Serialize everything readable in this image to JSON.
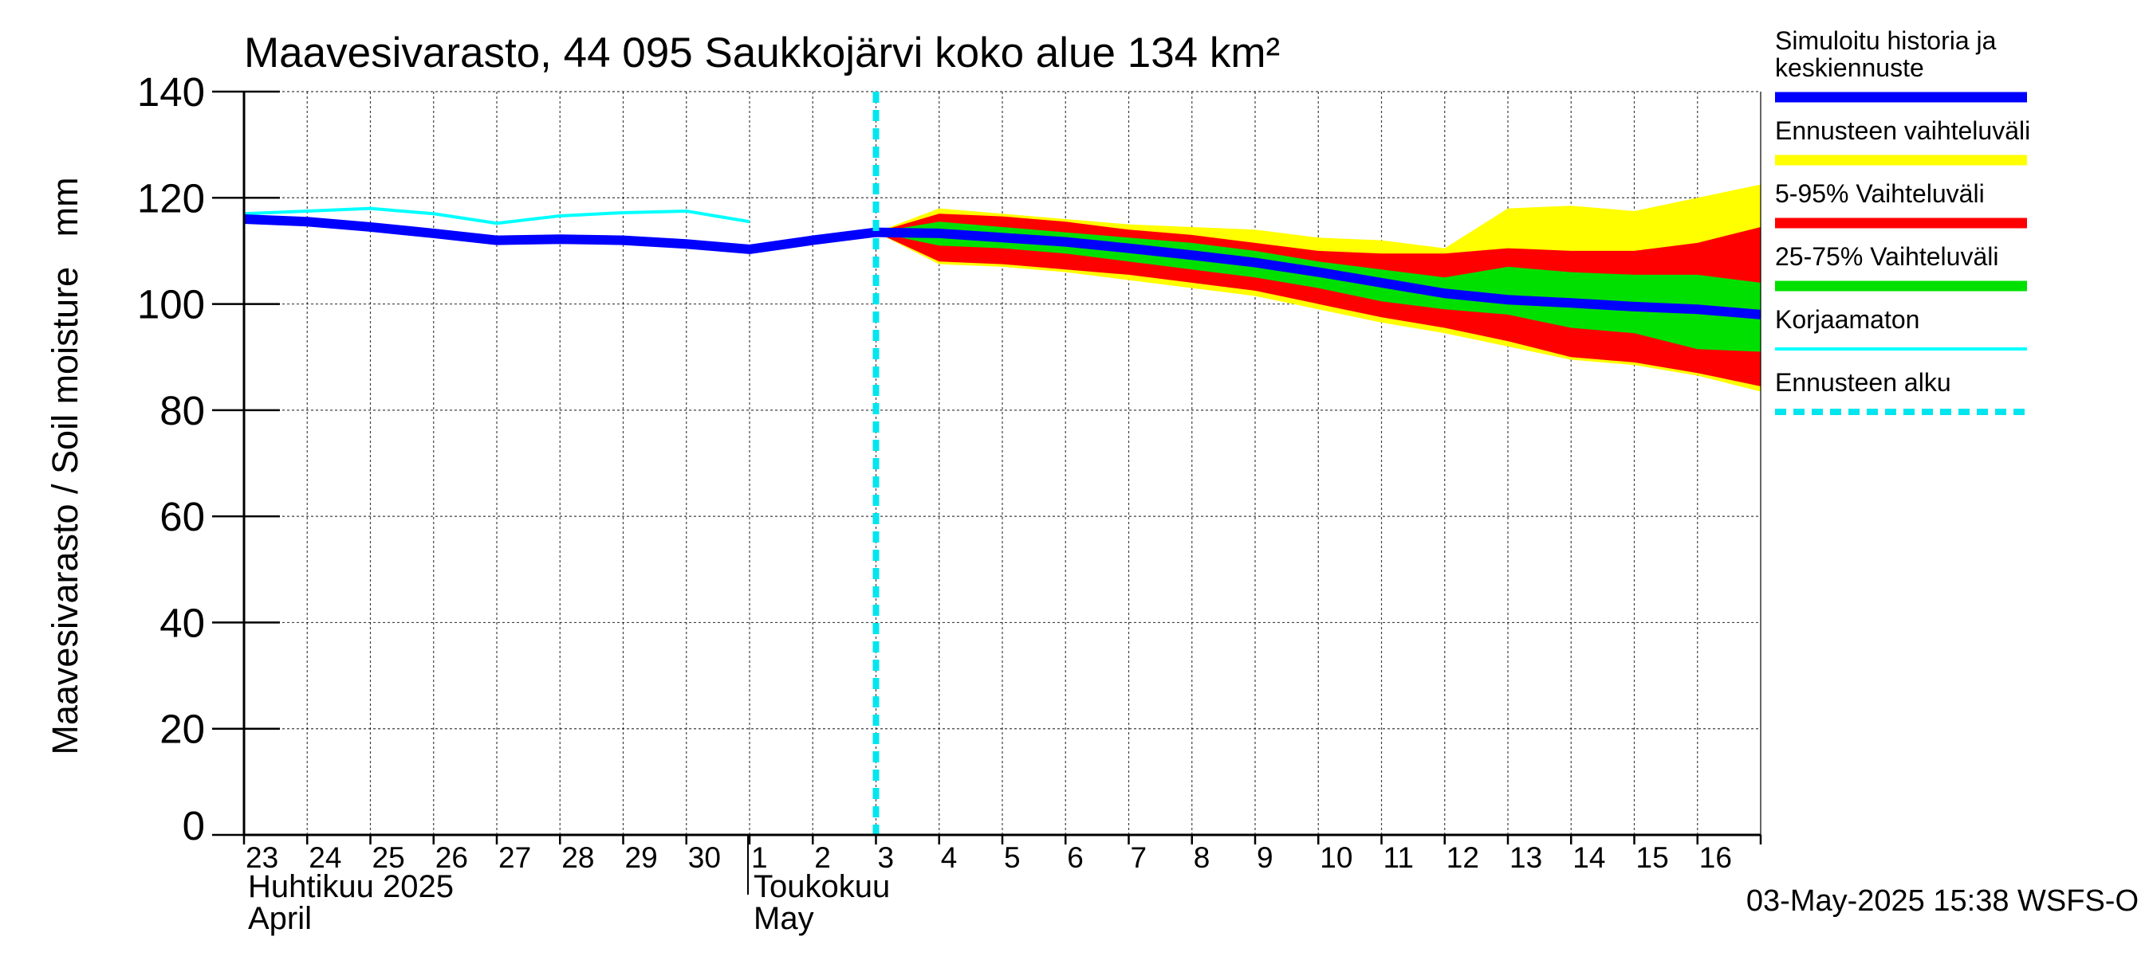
{
  "chart_data": {
    "type": "area",
    "title": "Maavesivarasto, 44 095 Saukkojärvi koko alue 134 km²",
    "ylabel": "Maavesivarasto / Soil moisture   mm",
    "ylim": [
      0,
      140
    ],
    "yticks": [
      0,
      20,
      40,
      60,
      80,
      100,
      120,
      140
    ],
    "x_day_range": [
      0,
      24
    ],
    "day_labels": [
      "23",
      "24",
      "25",
      "26",
      "27",
      "28",
      "29",
      "30",
      "1",
      "2",
      "3",
      "4",
      "5",
      "6",
      "7",
      "8",
      "9",
      "10",
      "11",
      "12",
      "13",
      "14",
      "15",
      "16"
    ],
    "month_labels": [
      {
        "fi": "Huhtikuu  2025",
        "en": "April",
        "at_day": 0
      },
      {
        "fi": "Toukokuu",
        "en": "May",
        "at_day": 8
      }
    ],
    "forecast_start_day": 10,
    "timestamp": "03-May-2025 15:38 WSFS-O",
    "colors": {
      "history": "#0000ff",
      "range_full": "#ffff00",
      "range_5_95": "#ff0000",
      "range_25_75": "#00e000",
      "uncorrected": "#00ffff",
      "forecast_start": "#00e5ee"
    },
    "legend": [
      {
        "key": "history",
        "label_lines": [
          "Simuloitu historia ja",
          "keskiennuste"
        ],
        "style": "thick"
      },
      {
        "key": "range_full",
        "label_lines": [
          "Ennusteen vaihteluväli"
        ],
        "style": "band"
      },
      {
        "key": "range_5_95",
        "label_lines": [
          "5-95% Vaihteluväli"
        ],
        "style": "band"
      },
      {
        "key": "range_25_75",
        "label_lines": [
          "25-75% Vaihteluväli"
        ],
        "style": "band"
      },
      {
        "key": "uncorrected",
        "label_lines": [
          "Korjaamaton"
        ],
        "style": "thin"
      },
      {
        "key": "forecast_start",
        "label_lines": [
          "Ennusteen alku"
        ],
        "style": "dashed"
      }
    ],
    "series": {
      "history": {
        "x": [
          0,
          1,
          2,
          3,
          4,
          5,
          6,
          7,
          8,
          9,
          10
        ],
        "y": [
          116,
          115.5,
          114.5,
          113.3,
          112,
          112.2,
          112,
          111.3,
          110.3,
          112,
          113.5
        ]
      },
      "median": {
        "x": [
          10,
          11,
          12,
          13,
          14,
          15,
          16,
          17,
          18,
          19,
          20,
          21,
          22,
          23,
          24
        ],
        "y": [
          113.5,
          113.3,
          112.5,
          111.7,
          110.5,
          109.2,
          107.8,
          106,
          104,
          102,
          100.8,
          100.2,
          99.5,
          99,
          98
        ]
      },
      "uncorrected": {
        "x": [
          0,
          1,
          2,
          3,
          4,
          5,
          6,
          7,
          8
        ],
        "y": [
          117,
          117.5,
          118,
          117,
          115.2,
          116.6,
          117.2,
          117.5,
          115.5
        ]
      },
      "range_full": {
        "x": [
          10,
          11,
          12,
          13,
          14,
          15,
          16,
          17,
          18,
          19,
          20,
          21,
          22,
          23,
          24
        ],
        "upper": [
          113.5,
          118,
          117,
          116,
          115,
          114.5,
          114,
          112.5,
          112,
          110.5,
          118,
          118.5,
          117.5,
          120,
          122.5
        ],
        "lower": [
          113.5,
          107.5,
          107,
          106,
          104.5,
          103,
          101.5,
          99,
          96.5,
          94.5,
          92,
          89.5,
          88.5,
          86.5,
          83.5
        ]
      },
      "range_5_95": {
        "x": [
          10,
          11,
          12,
          13,
          14,
          15,
          16,
          17,
          18,
          19,
          20,
          21,
          22,
          23,
          24
        ],
        "upper": [
          113.5,
          117,
          116.5,
          115.5,
          114,
          113,
          111.5,
          110,
          109.5,
          109.5,
          110.5,
          110,
          110,
          111.5,
          114.5
        ],
        "lower": [
          113.5,
          108,
          107.5,
          106.5,
          105.5,
          104,
          102.5,
          100,
          97.5,
          95.5,
          93,
          90,
          89,
          87,
          84.5
        ]
      },
      "range_25_75": {
        "x": [
          10,
          11,
          12,
          13,
          14,
          15,
          16,
          17,
          18,
          19,
          20,
          21,
          22,
          23,
          24
        ],
        "upper": [
          113.5,
          115.5,
          114.5,
          113.5,
          112.5,
          111.5,
          110,
          108,
          106.5,
          105,
          107,
          106,
          105.5,
          105.5,
          104
        ],
        "lower": [
          113.5,
          111,
          110.5,
          109.5,
          108,
          106.5,
          105,
          103,
          100.5,
          99,
          98,
          95.5,
          94.5,
          91.5,
          91
        ]
      }
    }
  }
}
